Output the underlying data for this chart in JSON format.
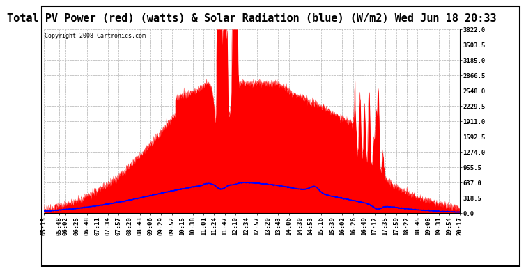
{
  "title": "Total PV Power (red) (watts) & Solar Radiation (blue) (W/m2) Wed Jun 18 20:33",
  "copyright": "Copyright 2008 Cartronics.com",
  "y_max": 3822.0,
  "y_min": 0.0,
  "y_ticks": [
    0.0,
    318.5,
    637.0,
    955.5,
    1274.0,
    1592.5,
    1911.0,
    2229.5,
    2548.0,
    2866.5,
    3185.0,
    3503.5,
    3822.0
  ],
  "x_labels": [
    "05:15",
    "05:48",
    "06:02",
    "06:25",
    "06:48",
    "07:11",
    "07:34",
    "07:57",
    "08:20",
    "08:43",
    "09:06",
    "09:29",
    "09:52",
    "10:15",
    "10:38",
    "11:01",
    "11:24",
    "11:47",
    "12:10",
    "12:34",
    "12:57",
    "13:20",
    "13:43",
    "14:06",
    "14:30",
    "14:53",
    "15:16",
    "15:39",
    "16:02",
    "16:26",
    "16:49",
    "17:12",
    "17:35",
    "17:59",
    "18:22",
    "18:45",
    "19:08",
    "19:31",
    "19:54",
    "20:17"
  ],
  "bg_color": "#ffffff",
  "plot_bg_color": "#ffffff",
  "red_color": "#ff0000",
  "blue_color": "#0000ff",
  "grid_color": "#b0b0b0",
  "title_font_size": 11,
  "tick_label_font_size": 6.5
}
